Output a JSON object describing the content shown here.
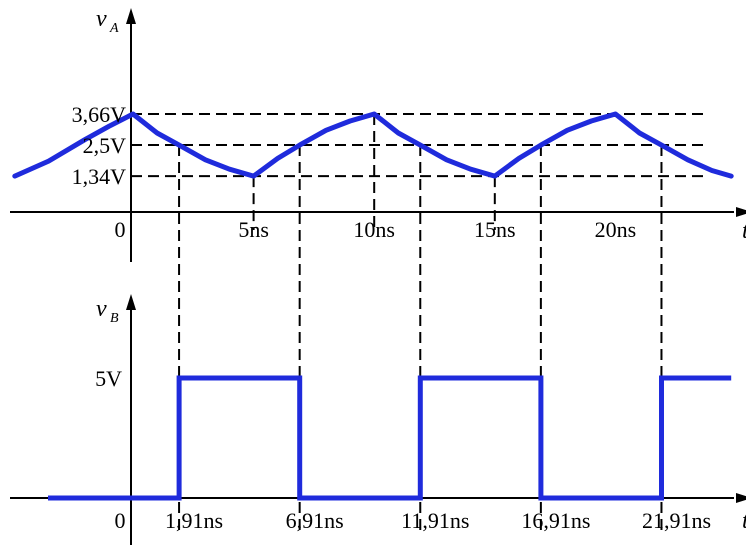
{
  "chart_data": [
    {
      "type": "line",
      "y_symbol": "v",
      "y_subscript": "A",
      "x_symbol": "t",
      "ytick_labels": [
        "3,66V",
        "2,5V",
        "1,34V"
      ],
      "ytick_values": [
        3.66,
        2.5,
        1.34
      ],
      "xtick_labels": [
        "0",
        "5ns",
        "10ns",
        "15ns",
        "20ns"
      ],
      "xtick_values": [
        0,
        5,
        10,
        15,
        20
      ],
      "xlim": [
        -4.9,
        24.8
      ],
      "ylim": [
        0,
        4.5
      ],
      "series": [
        {
          "color": "#1f2bdc",
          "points": [
            [
              -4.9,
              1.34
            ],
            [
              -3.5,
              1.9
            ],
            [
              -2.0,
              2.7
            ],
            [
              -1.0,
              3.2
            ],
            [
              0,
              3.66
            ],
            [
              1,
              2.95
            ],
            [
              1.91,
              2.5
            ],
            [
              3,
              1.95
            ],
            [
              4,
              1.6
            ],
            [
              5,
              1.34
            ],
            [
              6,
              2.0
            ],
            [
              6.91,
              2.5
            ],
            [
              8,
              3.05
            ],
            [
              9,
              3.4
            ],
            [
              10,
              3.66
            ],
            [
              11,
              2.95
            ],
            [
              11.91,
              2.5
            ],
            [
              13,
              1.95
            ],
            [
              14,
              1.6
            ],
            [
              15,
              1.34
            ],
            [
              16,
              2.0
            ],
            [
              16.91,
              2.5
            ],
            [
              18,
              3.05
            ],
            [
              19,
              3.4
            ],
            [
              20,
              3.66
            ],
            [
              21,
              2.95
            ],
            [
              21.91,
              2.5
            ],
            [
              23,
              1.95
            ],
            [
              24,
              1.55
            ],
            [
              24.8,
              1.34
            ]
          ]
        }
      ]
    },
    {
      "type": "line",
      "y_symbol": "v",
      "y_subscript": "B",
      "x_symbol": "t",
      "ytick_labels": [
        "5V"
      ],
      "ytick_values": [
        5
      ],
      "xtick_labels": [
        "0",
        "1,91ns",
        "6,91ns",
        "11,91ns",
        "16,91ns",
        "21,91ns"
      ],
      "xtick_values": [
        0,
        1.91,
        6.91,
        11.91,
        16.91,
        21.91
      ],
      "xlim": [
        -4.9,
        24.8
      ],
      "ylim": [
        0,
        6
      ],
      "series": [
        {
          "color": "#1f2bdc",
          "points": [
            [
              -4.9,
              0
            ],
            [
              1.91,
              0
            ],
            [
              1.91,
              5
            ],
            [
              6.91,
              5
            ],
            [
              6.91,
              0
            ],
            [
              11.91,
              0
            ],
            [
              11.91,
              5
            ],
            [
              16.91,
              5
            ],
            [
              16.91,
              0
            ],
            [
              21.91,
              0
            ],
            [
              21.91,
              5
            ],
            [
              24.8,
              5
            ]
          ]
        }
      ]
    }
  ]
}
